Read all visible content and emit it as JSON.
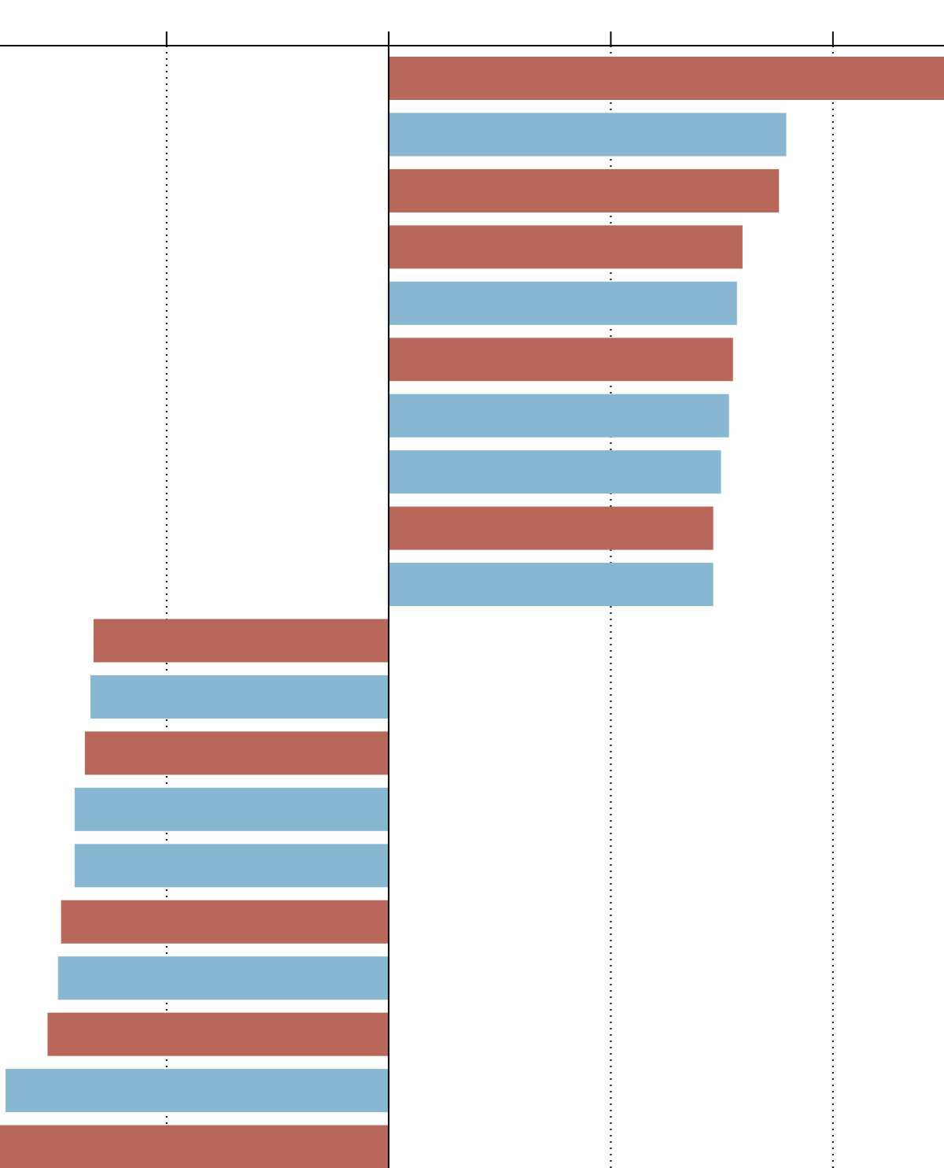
{
  "chart_data": {
    "type": "bar",
    "orientation": "horizontal",
    "title": "",
    "xlabel": "",
    "ylabel": "",
    "xlim": [
      -1.75,
      2.5
    ],
    "x_ticks": [
      -1,
      0,
      1,
      2
    ],
    "grid": "vertical dotted",
    "legend": "none",
    "colors": {
      "red": "#b8685a",
      "blue": "#88b8d1",
      "axis": "#000000"
    },
    "bars": [
      {
        "value": 2.6,
        "color": "red"
      },
      {
        "value": 1.79,
        "color": "blue"
      },
      {
        "value": 1.757,
        "color": "red"
      },
      {
        "value": 1.593,
        "color": "red"
      },
      {
        "value": 1.568,
        "color": "blue"
      },
      {
        "value": 1.55,
        "color": "red"
      },
      {
        "value": 1.532,
        "color": "blue"
      },
      {
        "value": 1.496,
        "color": "blue"
      },
      {
        "value": 1.461,
        "color": "red"
      },
      {
        "value": 1.461,
        "color": "blue"
      },
      {
        "value": -1.329,
        "color": "red"
      },
      {
        "value": -1.343,
        "color": "blue"
      },
      {
        "value": -1.368,
        "color": "red"
      },
      {
        "value": -1.414,
        "color": "blue"
      },
      {
        "value": -1.414,
        "color": "blue"
      },
      {
        "value": -1.475,
        "color": "red"
      },
      {
        "value": -1.489,
        "color": "blue"
      },
      {
        "value": -1.536,
        "color": "red"
      },
      {
        "value": -1.725,
        "color": "blue"
      },
      {
        "value": -1.9,
        "color": "red"
      }
    ]
  }
}
